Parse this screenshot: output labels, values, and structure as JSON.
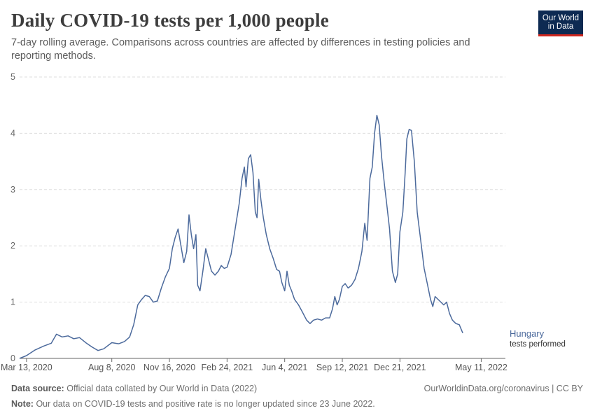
{
  "title": "Daily COVID-19 tests per 1,000 people",
  "subtitle": "7-day rolling average. Comparisons across countries are affected by differences in testing policies and reporting methods.",
  "logo": {
    "line1": "Our World",
    "line2": "in Data"
  },
  "footer": {
    "source_label": "Data source:",
    "source_text": "Official data collated by Our World in Data (2022)",
    "url": "OurWorldinData.org/coronavirus | CC BY",
    "note_label": "Note:",
    "note_text": "Our data on COVID-19 tests and positive rate is no longer updated since 23 June 2022."
  },
  "colors": {
    "series": "#4c6a9c",
    "grid": "#dddddd",
    "axis": "#666666",
    "text": "#5b5b5b"
  },
  "chart_data": {
    "type": "line",
    "xlabel": "",
    "ylabel": "",
    "x_range": [
      "2020-03-01",
      "2022-06-22"
    ],
    "ylim": [
      0,
      5
    ],
    "y_ticks": [
      0,
      1,
      2,
      3,
      4,
      5
    ],
    "grid": "horizontal dashed",
    "x_ticks": [
      {
        "date": "2020-03-13",
        "label": "Mar 13, 2020"
      },
      {
        "date": "2020-08-08",
        "label": "Aug 8, 2020"
      },
      {
        "date": "2020-11-16",
        "label": "Nov 16, 2020"
      },
      {
        "date": "2021-02-24",
        "label": "Feb 24, 2021"
      },
      {
        "date": "2021-06-04",
        "label": "Jun 4, 2021"
      },
      {
        "date": "2021-09-12",
        "label": "Sep 12, 2021"
      },
      {
        "date": "2021-12-21",
        "label": "Dec 21, 2021"
      },
      {
        "date": "2022-05-11",
        "label": "May 11, 2022"
      }
    ],
    "series": [
      {
        "name": "Hungary",
        "label_sub": "tests performed",
        "points": [
          [
            "2020-03-01",
            0.0
          ],
          [
            "2020-03-13",
            0.05
          ],
          [
            "2020-03-28",
            0.15
          ],
          [
            "2020-04-12",
            0.22
          ],
          [
            "2020-04-25",
            0.27
          ],
          [
            "2020-05-04",
            0.43
          ],
          [
            "2020-05-14",
            0.38
          ],
          [
            "2020-05-24",
            0.4
          ],
          [
            "2020-06-03",
            0.35
          ],
          [
            "2020-06-13",
            0.37
          ],
          [
            "2020-06-25",
            0.27
          ],
          [
            "2020-07-05",
            0.2
          ],
          [
            "2020-07-15",
            0.14
          ],
          [
            "2020-07-25",
            0.17
          ],
          [
            "2020-08-08",
            0.28
          ],
          [
            "2020-08-20",
            0.26
          ],
          [
            "2020-08-30",
            0.3
          ],
          [
            "2020-09-08",
            0.38
          ],
          [
            "2020-09-15",
            0.6
          ],
          [
            "2020-09-22",
            0.95
          ],
          [
            "2020-09-29",
            1.05
          ],
          [
            "2020-10-05",
            1.12
          ],
          [
            "2020-10-12",
            1.1
          ],
          [
            "2020-10-19",
            1.0
          ],
          [
            "2020-10-26",
            1.02
          ],
          [
            "2020-11-02",
            1.25
          ],
          [
            "2020-11-09",
            1.45
          ],
          [
            "2020-11-16",
            1.6
          ],
          [
            "2020-11-21",
            1.95
          ],
          [
            "2020-11-26",
            2.15
          ],
          [
            "2020-12-01",
            2.3
          ],
          [
            "2020-12-06",
            2.0
          ],
          [
            "2020-12-11",
            1.7
          ],
          [
            "2020-12-16",
            1.9
          ],
          [
            "2020-12-20",
            2.55
          ],
          [
            "2020-12-24",
            2.2
          ],
          [
            "2020-12-28",
            1.95
          ],
          [
            "2021-01-01",
            2.2
          ],
          [
            "2021-01-04",
            1.3
          ],
          [
            "2021-01-08",
            1.2
          ],
          [
            "2021-01-13",
            1.55
          ],
          [
            "2021-01-18",
            1.95
          ],
          [
            "2021-01-23",
            1.75
          ],
          [
            "2021-01-28",
            1.55
          ],
          [
            "2021-02-03",
            1.48
          ],
          [
            "2021-02-09",
            1.55
          ],
          [
            "2021-02-14",
            1.65
          ],
          [
            "2021-02-19",
            1.6
          ],
          [
            "2021-02-24",
            1.62
          ],
          [
            "2021-03-03",
            1.85
          ],
          [
            "2021-03-10",
            2.3
          ],
          [
            "2021-03-17",
            2.75
          ],
          [
            "2021-03-22",
            3.2
          ],
          [
            "2021-03-26",
            3.4
          ],
          [
            "2021-03-29",
            3.05
          ],
          [
            "2021-04-02",
            3.55
          ],
          [
            "2021-04-06",
            3.62
          ],
          [
            "2021-04-10",
            3.3
          ],
          [
            "2021-04-14",
            2.6
          ],
          [
            "2021-04-17",
            2.5
          ],
          [
            "2021-04-20",
            3.18
          ],
          [
            "2021-04-24",
            2.8
          ],
          [
            "2021-04-28",
            2.5
          ],
          [
            "2021-05-03",
            2.2
          ],
          [
            "2021-05-09",
            1.95
          ],
          [
            "2021-05-15",
            1.78
          ],
          [
            "2021-05-21",
            1.58
          ],
          [
            "2021-05-26",
            1.55
          ],
          [
            "2021-05-30",
            1.35
          ],
          [
            "2021-06-04",
            1.2
          ],
          [
            "2021-06-08",
            1.55
          ],
          [
            "2021-06-12",
            1.3
          ],
          [
            "2021-06-16",
            1.2
          ],
          [
            "2021-06-21",
            1.05
          ],
          [
            "2021-06-28",
            0.95
          ],
          [
            "2021-07-05",
            0.82
          ],
          [
            "2021-07-12",
            0.68
          ],
          [
            "2021-07-18",
            0.62
          ],
          [
            "2021-07-24",
            0.68
          ],
          [
            "2021-07-31",
            0.7
          ],
          [
            "2021-08-07",
            0.68
          ],
          [
            "2021-08-14",
            0.72
          ],
          [
            "2021-08-21",
            0.72
          ],
          [
            "2021-08-26",
            0.88
          ],
          [
            "2021-08-30",
            1.1
          ],
          [
            "2021-09-03",
            0.95
          ],
          [
            "2021-09-07",
            1.05
          ],
          [
            "2021-09-12",
            1.28
          ],
          [
            "2021-09-17",
            1.33
          ],
          [
            "2021-09-22",
            1.25
          ],
          [
            "2021-09-28",
            1.3
          ],
          [
            "2021-10-04",
            1.4
          ],
          [
            "2021-10-10",
            1.6
          ],
          [
            "2021-10-16",
            1.9
          ],
          [
            "2021-10-21",
            2.4
          ],
          [
            "2021-10-25",
            2.1
          ],
          [
            "2021-10-30",
            3.2
          ],
          [
            "2021-11-03",
            3.4
          ],
          [
            "2021-11-07",
            4.0
          ],
          [
            "2021-11-11",
            4.32
          ],
          [
            "2021-11-15",
            4.15
          ],
          [
            "2021-11-19",
            3.6
          ],
          [
            "2021-11-24",
            3.1
          ],
          [
            "2021-11-28",
            2.75
          ],
          [
            "2021-12-03",
            2.3
          ],
          [
            "2021-12-08",
            1.55
          ],
          [
            "2021-12-13",
            1.35
          ],
          [
            "2021-12-17",
            1.5
          ],
          [
            "2021-12-21",
            2.25
          ],
          [
            "2021-12-26",
            2.6
          ],
          [
            "2021-12-30",
            3.3
          ],
          [
            "2022-01-02",
            3.9
          ],
          [
            "2022-01-06",
            4.07
          ],
          [
            "2022-01-10",
            4.05
          ],
          [
            "2022-01-15",
            3.5
          ],
          [
            "2022-01-20",
            2.6
          ],
          [
            "2022-01-26",
            2.1
          ],
          [
            "2022-02-01",
            1.6
          ],
          [
            "2022-02-07",
            1.3
          ],
          [
            "2022-02-12",
            1.05
          ],
          [
            "2022-02-16",
            0.92
          ],
          [
            "2022-02-20",
            1.1
          ],
          [
            "2022-02-25",
            1.05
          ],
          [
            "2022-03-02",
            1.0
          ],
          [
            "2022-03-07",
            0.95
          ],
          [
            "2022-03-12",
            1.0
          ],
          [
            "2022-03-17",
            0.8
          ],
          [
            "2022-03-22",
            0.68
          ],
          [
            "2022-03-28",
            0.62
          ],
          [
            "2022-04-03",
            0.6
          ],
          [
            "2022-04-09",
            0.45
          ]
        ]
      }
    ]
  }
}
